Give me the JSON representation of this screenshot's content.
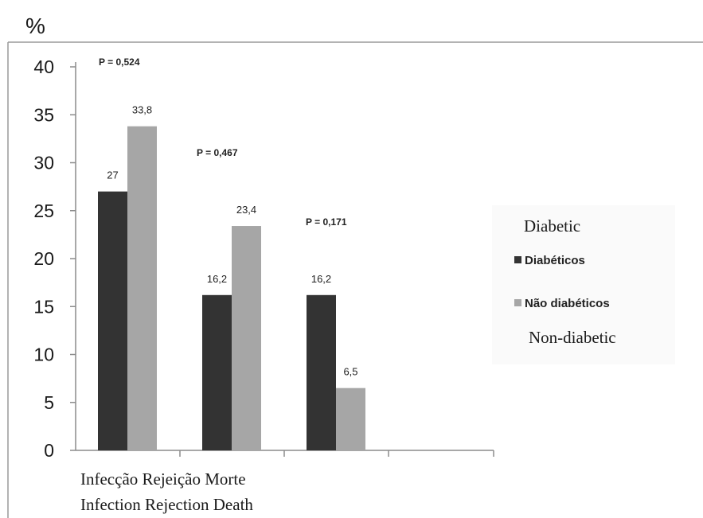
{
  "chart_data": {
    "type": "bar",
    "y_unit": "%",
    "ylim": [
      0,
      40
    ],
    "yticks": [
      "0",
      "5",
      "10",
      "15",
      "20",
      "25",
      "30",
      "35",
      "40"
    ],
    "categories": [
      "Infecção",
      "Rejeição",
      "Morte"
    ],
    "series": [
      {
        "name": "Diabéticos",
        "color": "#333333",
        "values": [
          27,
          16.2,
          16.2
        ],
        "labels": [
          "27",
          "16,2",
          "16,2"
        ]
      },
      {
        "name": "Não diabéticos",
        "color": "#a6a6a6",
        "values": [
          33.8,
          23.4,
          6.5
        ],
        "labels": [
          "33,8",
          "23,4",
          "6,5"
        ]
      }
    ],
    "p_values": [
      "P = 0,524",
      "P = 0,467",
      "P = 0,171"
    ],
    "legend_position": "right",
    "legend_translations": [
      "Diabetic",
      "Non-diabetic"
    ],
    "category_caption_pt": "Infecção Rejeição Morte",
    "category_caption_en": "Infection Rejection Death"
  }
}
